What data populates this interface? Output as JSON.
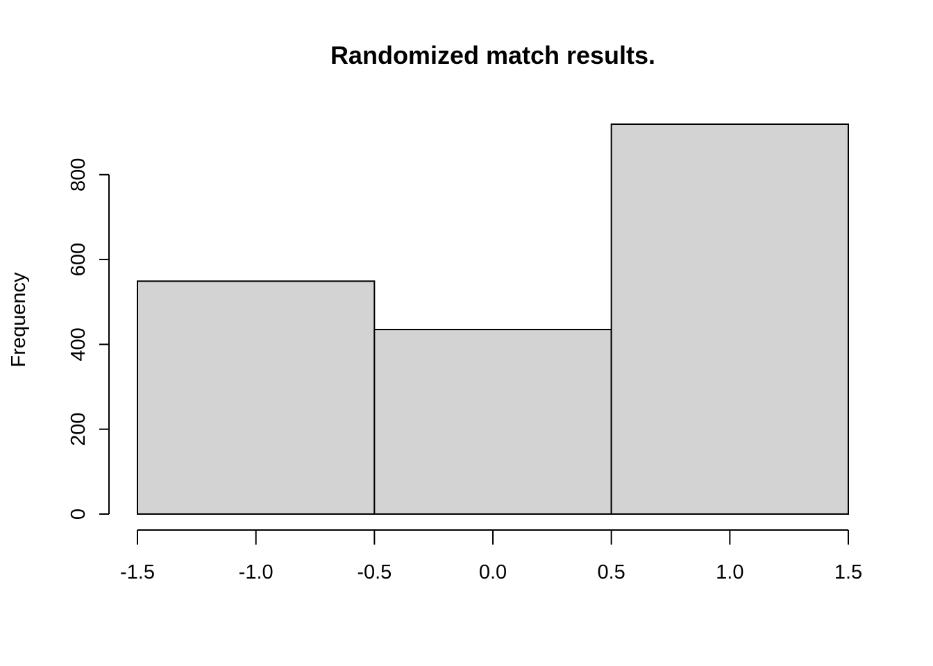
{
  "chart_data": {
    "type": "bar",
    "title": "Randomized match results.",
    "xlabel": "",
    "ylabel": "Frequency",
    "bins": [
      {
        "x0": -1.5,
        "x1": -0.5,
        "value": 549
      },
      {
        "x0": -0.5,
        "x1": 0.5,
        "value": 435
      },
      {
        "x0": 0.5,
        "x1": 1.5,
        "value": 919
      }
    ],
    "xlim": [
      -1.5,
      1.5
    ],
    "ylim": [
      0,
      919
    ],
    "x_ticks": [
      -1.5,
      -1.0,
      -0.5,
      0.0,
      0.5,
      1.0,
      1.5
    ],
    "x_tick_labels": [
      "-1.5",
      "-1.0",
      "-0.5",
      "0.0",
      "0.5",
      "1.0",
      "1.5"
    ],
    "y_ticks": [
      0,
      200,
      400,
      600,
      800
    ],
    "y_tick_labels": [
      "0",
      "200",
      "400",
      "600",
      "800"
    ],
    "bar_color": "#d3d3d3",
    "border_color": "#000000",
    "grid": false
  }
}
